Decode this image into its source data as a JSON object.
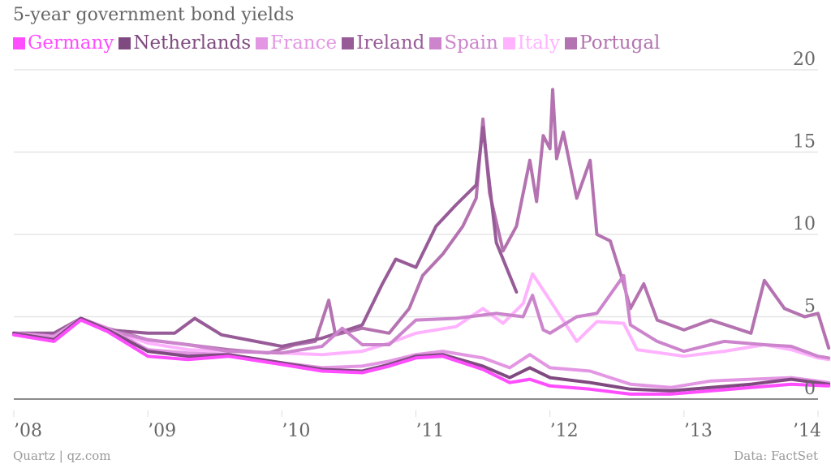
{
  "chart_data": {
    "type": "line",
    "title": "5-year government bond yields",
    "xlabel": "",
    "ylabel": "",
    "xlim": [
      2008.0,
      2014.1
    ],
    "ylim": [
      0,
      20
    ],
    "grid": true,
    "legend_position": "top-left",
    "x_ticks": [
      2008,
      2009,
      2010,
      2011,
      2012,
      2013,
      2014
    ],
    "x_tick_labels": [
      "’08",
      "’09",
      "’10",
      "’11",
      "’12",
      "’13",
      "’14"
    ],
    "y_ticks": [
      0,
      5,
      10,
      15,
      20
    ],
    "y_tick_labels": [
      "0",
      "5",
      "10",
      "15",
      "20"
    ],
    "series": [
      {
        "name": "Portugal",
        "color": "#b473b0",
        "x": [
          2008.0,
          2008.3,
          2008.5,
          2008.7,
          2009.0,
          2009.3,
          2009.6,
          2009.9,
          2010.1,
          2010.25,
          2010.35,
          2010.4,
          2010.6,
          2010.8,
          2010.95,
          2011.05,
          2011.2,
          2011.35,
          2011.45,
          2011.5,
          2011.55,
          2011.65,
          2011.75,
          2011.85,
          2011.9,
          2011.95,
          2012.0,
          2012.02,
          2012.05,
          2012.1,
          2012.2,
          2012.3,
          2012.35,
          2012.45,
          2012.55,
          2012.6,
          2012.7,
          2012.8,
          2013.0,
          2013.2,
          2013.5,
          2013.6,
          2013.75,
          2013.9,
          2014.0,
          2014.08
        ],
        "values": [
          4.0,
          3.8,
          4.9,
          4.3,
          3.6,
          3.3,
          3.0,
          2.8,
          3.3,
          3.5,
          6.0,
          3.9,
          4.3,
          4.0,
          5.5,
          7.5,
          8.8,
          10.5,
          12.2,
          17.0,
          12.5,
          9.0,
          10.5,
          14.5,
          12.0,
          16.0,
          15.2,
          18.8,
          14.6,
          16.2,
          12.2,
          14.5,
          10.0,
          9.6,
          7.0,
          5.5,
          7.0,
          4.8,
          4.2,
          4.8,
          4.0,
          7.2,
          5.5,
          5.0,
          5.2,
          3.1
        ]
      },
      {
        "name": "Ireland",
        "color": "#975c97",
        "x": [
          2008.0,
          2008.3,
          2008.5,
          2008.7,
          2009.0,
          2009.2,
          2009.35,
          2009.55,
          2010.0,
          2010.3,
          2010.6,
          2010.75,
          2010.85,
          2011.0,
          2011.15,
          2011.3,
          2011.45,
          2011.5,
          2011.6,
          2011.7,
          2011.75
        ],
        "values": [
          4.0,
          4.0,
          4.9,
          4.2,
          4.0,
          4.0,
          4.9,
          3.9,
          3.2,
          3.7,
          4.5,
          7.0,
          8.5,
          8.0,
          10.5,
          11.8,
          13.0,
          16.5,
          9.5,
          7.5,
          6.5
        ]
      },
      {
        "name": "Italy",
        "color": "#ffb3ff",
        "x": [
          2008.0,
          2008.3,
          2008.5,
          2008.7,
          2009.0,
          2009.3,
          2009.6,
          2010.0,
          2010.3,
          2010.6,
          2010.8,
          2011.0,
          2011.3,
          2011.5,
          2011.65,
          2011.8,
          2011.87,
          2012.0,
          2012.2,
          2012.35,
          2012.55,
          2012.65,
          2013.0,
          2013.3,
          2013.6,
          2013.8,
          2014.0,
          2014.08
        ],
        "values": [
          4.0,
          3.8,
          4.9,
          4.2,
          3.4,
          3.0,
          2.9,
          2.8,
          2.7,
          2.9,
          3.4,
          4.0,
          4.4,
          5.5,
          4.6,
          5.8,
          7.6,
          6.0,
          3.5,
          4.7,
          4.6,
          3.0,
          2.6,
          2.9,
          3.3,
          3.0,
          2.5,
          2.4
        ]
      },
      {
        "name": "Spain",
        "color": "#cc85cc",
        "x": [
          2008.0,
          2008.3,
          2008.5,
          2008.7,
          2009.0,
          2009.3,
          2009.6,
          2010.0,
          2010.3,
          2010.45,
          2010.6,
          2010.8,
          2011.0,
          2011.3,
          2011.6,
          2011.8,
          2011.87,
          2011.95,
          2012.0,
          2012.2,
          2012.35,
          2012.55,
          2012.6,
          2012.8,
          2013.0,
          2013.3,
          2013.6,
          2013.8,
          2014.0,
          2014.08
        ],
        "values": [
          4.0,
          3.8,
          4.9,
          4.2,
          3.6,
          3.3,
          2.9,
          2.8,
          3.2,
          4.3,
          3.3,
          3.3,
          4.8,
          4.9,
          5.2,
          5.0,
          6.3,
          4.2,
          4.0,
          5.0,
          5.2,
          7.5,
          4.5,
          3.5,
          2.9,
          3.5,
          3.3,
          3.2,
          2.6,
          2.5
        ]
      },
      {
        "name": "France",
        "color": "#e397e3",
        "x": [
          2008.0,
          2008.3,
          2008.5,
          2008.7,
          2009.0,
          2009.3,
          2009.6,
          2010.0,
          2010.3,
          2010.6,
          2010.8,
          2011.0,
          2011.2,
          2011.5,
          2011.7,
          2011.85,
          2012.0,
          2012.3,
          2012.6,
          2012.9,
          2013.2,
          2013.5,
          2013.8,
          2014.08
        ],
        "values": [
          4.0,
          3.8,
          4.9,
          4.3,
          3.0,
          2.8,
          2.7,
          2.2,
          1.9,
          2.0,
          2.3,
          2.7,
          2.9,
          2.5,
          1.9,
          2.7,
          1.9,
          1.7,
          0.9,
          0.7,
          1.1,
          1.2,
          1.3,
          1.0
        ]
      },
      {
        "name": "Netherlands",
        "color": "#7f4a7f",
        "x": [
          2008.0,
          2008.3,
          2008.5,
          2008.7,
          2009.0,
          2009.3,
          2009.6,
          2010.0,
          2010.3,
          2010.6,
          2010.8,
          2011.0,
          2011.2,
          2011.5,
          2011.7,
          2011.85,
          2012.0,
          2012.3,
          2012.6,
          2012.9,
          2013.2,
          2013.5,
          2013.8,
          2014.08
        ],
        "values": [
          4.0,
          3.6,
          4.9,
          4.2,
          2.9,
          2.6,
          2.7,
          2.2,
          1.8,
          1.7,
          2.1,
          2.6,
          2.7,
          2.0,
          1.3,
          1.9,
          1.3,
          1.0,
          0.6,
          0.5,
          0.7,
          0.9,
          1.2,
          0.9
        ]
      },
      {
        "name": "Germany",
        "color": "#ff4dff",
        "x": [
          2008.0,
          2008.3,
          2008.5,
          2008.7,
          2009.0,
          2009.3,
          2009.6,
          2010.0,
          2010.3,
          2010.6,
          2010.8,
          2011.0,
          2011.2,
          2011.5,
          2011.7,
          2011.85,
          2012.0,
          2012.3,
          2012.6,
          2012.9,
          2013.2,
          2013.5,
          2013.8,
          2014.08
        ],
        "values": [
          3.9,
          3.5,
          4.8,
          4.1,
          2.6,
          2.4,
          2.6,
          2.1,
          1.7,
          1.6,
          2.0,
          2.5,
          2.6,
          1.8,
          1.0,
          1.2,
          0.8,
          0.6,
          0.3,
          0.3,
          0.5,
          0.7,
          0.9,
          0.8
        ]
      }
    ]
  },
  "legend": [
    {
      "label": "Germany",
      "color": "#ff4dff"
    },
    {
      "label": "Netherlands",
      "color": "#7f4a7f"
    },
    {
      "label": "France",
      "color": "#e397e3"
    },
    {
      "label": "Ireland",
      "color": "#975c97"
    },
    {
      "label": "Spain",
      "color": "#cc85cc"
    },
    {
      "label": "Italy",
      "color": "#ffb3ff"
    },
    {
      "label": "Portugal",
      "color": "#b473b0"
    }
  ],
  "footer": {
    "source": "Quartz | qz.com",
    "credit": "Data: FactSet"
  }
}
